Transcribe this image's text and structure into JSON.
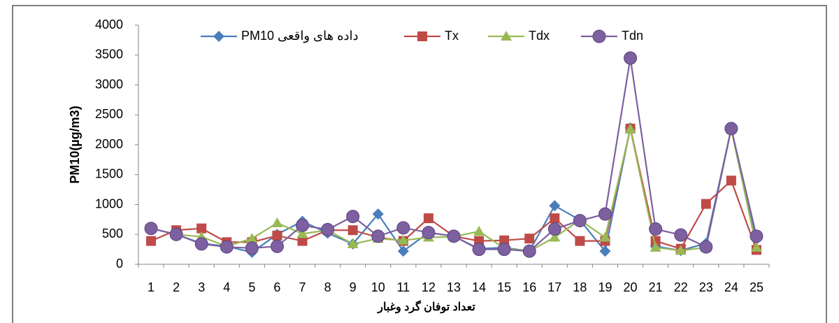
{
  "chart_data": {
    "type": "line",
    "y_label": "PM10(µg/m3)",
    "x_label": "تعداد توفان گرد وغبار",
    "categories": [
      1,
      2,
      3,
      4,
      5,
      6,
      7,
      8,
      9,
      10,
      11,
      12,
      13,
      14,
      15,
      16,
      17,
      18,
      19,
      20,
      21,
      22,
      23,
      24,
      25
    ],
    "ylim": [
      0,
      4000
    ],
    "yticks": [
      0,
      500,
      1000,
      1500,
      2000,
      2500,
      3000,
      3500,
      4000
    ],
    "legend": "top",
    "series": [
      {
        "name": "داده های واقعی PM10",
        "color": "#4a7ebb",
        "marker": "diamond",
        "values": [
          600,
          500,
          350,
          300,
          200,
          500,
          720,
          520,
          340,
          840,
          220,
          530,
          470,
          260,
          280,
          220,
          980,
          740,
          220,
          2280,
          300,
          230,
          350,
          2270,
          420
        ]
      },
      {
        "name": "Tx",
        "color": "#be4b48",
        "marker": "square",
        "values": [
          390,
          570,
          600,
          370,
          370,
          480,
          390,
          570,
          570,
          450,
          390,
          770,
          470,
          390,
          400,
          430,
          770,
          390,
          390,
          2270,
          390,
          260,
          1010,
          1400,
          240
        ]
      },
      {
        "name": "Tdx",
        "color": "#98b954",
        "marker": "triangle",
        "values": [
          600,
          500,
          460,
          300,
          430,
          690,
          510,
          570,
          340,
          430,
          400,
          450,
          460,
          550,
          270,
          220,
          450,
          740,
          450,
          2260,
          280,
          230,
          280,
          2260,
          280
        ]
      },
      {
        "name": "Tdn",
        "color": "#7d60a0",
        "marker": "circle",
        "values": [
          600,
          500,
          340,
          290,
          270,
          300,
          650,
          580,
          800,
          470,
          610,
          530,
          470,
          250,
          250,
          220,
          590,
          730,
          840,
          3450,
          590,
          490,
          290,
          2270,
          470
        ]
      }
    ]
  }
}
